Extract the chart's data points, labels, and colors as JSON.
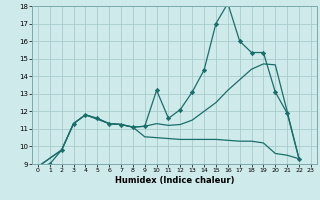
{
  "title": "",
  "xlabel": "Humidex (Indice chaleur)",
  "xlim": [
    -0.5,
    23.5
  ],
  "ylim": [
    9,
    18
  ],
  "xticks": [
    0,
    1,
    2,
    3,
    4,
    5,
    6,
    7,
    8,
    9,
    10,
    11,
    12,
    13,
    14,
    15,
    16,
    17,
    18,
    19,
    20,
    21,
    22,
    23
  ],
  "yticks": [
    9,
    10,
    11,
    12,
    13,
    14,
    15,
    16,
    17,
    18
  ],
  "bg_color": "#ceeaea",
  "grid_color": "#a8cccc",
  "line_color": "#1a6e6a",
  "line1_x": [
    0,
    1,
    2,
    3,
    4,
    5,
    6,
    7,
    8,
    9,
    10,
    11,
    12,
    13,
    14,
    15,
    16,
    17,
    18,
    19,
    20,
    21,
    22
  ],
  "line1_y": [
    8.85,
    9.0,
    9.8,
    11.3,
    11.8,
    11.6,
    11.3,
    11.25,
    11.1,
    11.15,
    13.2,
    11.6,
    12.1,
    13.1,
    14.35,
    17.0,
    18.15,
    16.0,
    15.35,
    15.35,
    13.1,
    11.9,
    9.3
  ],
  "line2_x": [
    0,
    2,
    3,
    4,
    5,
    6,
    7,
    8,
    9,
    10,
    11,
    12,
    13,
    14,
    15,
    16,
    17,
    18,
    19,
    20,
    21,
    22
  ],
  "line2_y": [
    8.85,
    9.8,
    11.3,
    11.8,
    11.6,
    11.3,
    11.25,
    11.1,
    11.15,
    11.3,
    11.2,
    11.25,
    11.5,
    12.0,
    12.5,
    13.2,
    13.8,
    14.4,
    14.7,
    14.65,
    12.0,
    9.3
  ],
  "line3_x": [
    0,
    2,
    3,
    4,
    6,
    7,
    8,
    9,
    10,
    11,
    12,
    13,
    14,
    15,
    16,
    17,
    18,
    19,
    20,
    21,
    22
  ],
  "line3_y": [
    8.85,
    9.8,
    11.3,
    11.8,
    11.3,
    11.25,
    11.1,
    10.55,
    10.5,
    10.45,
    10.4,
    10.4,
    10.4,
    10.4,
    10.35,
    10.3,
    10.3,
    10.2,
    9.6,
    9.5,
    9.3
  ]
}
